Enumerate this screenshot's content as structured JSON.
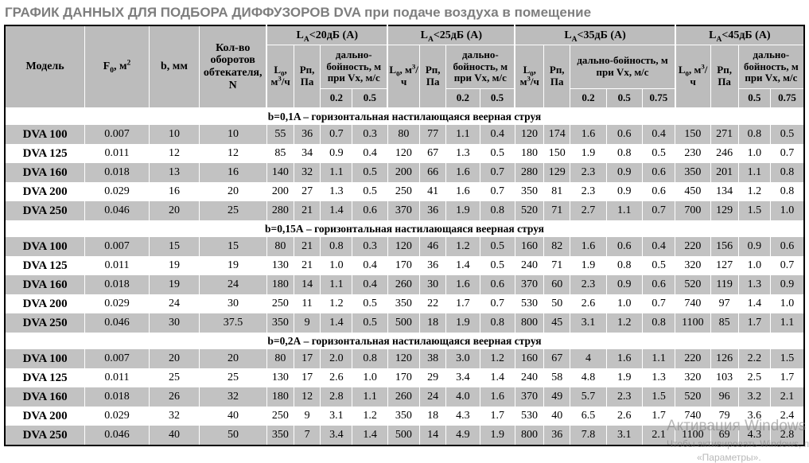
{
  "title": "ГРАФИК ДАННЫХ ДЛЯ ПОДБОРА ДИФФУЗОРОВ DVA при подаче воздуха в помещение",
  "colors": {
    "header_gray": "#bcbcbc",
    "row_gray": "#c2c2c2",
    "title_gray": "#7e7e7e",
    "border_black": "#000000"
  },
  "table": {
    "headers": {
      "model": "Модель",
      "f0": "F_{0}, м^{2}",
      "b": "b, мм",
      "n": "Кол-во оборотов обтекателя, N",
      "l0": "L_{0}, м^{3}/ч",
      "rp": "Рп, Па",
      "range": "дально-бойность, м при Vx, м/с"
    },
    "groups": [
      {
        "title": "L_{A}<20дБ (А)",
        "speeds": [
          "0.2",
          "0.5"
        ]
      },
      {
        "title": "L_{A}<25дБ (А)",
        "speeds": [
          "0.2",
          "0.5"
        ]
      },
      {
        "title": "L_{A}<35дБ (А)",
        "speeds": [
          "0.2",
          "0.5",
          "0.75"
        ]
      },
      {
        "title": "L_{A}<45дБ (А)",
        "speeds": [
          "0.5",
          "0.75"
        ]
      }
    ],
    "sections": [
      {
        "label": "b=0,1A  – горизонтальная настилающаяся веерная струя",
        "rows": [
          [
            "DVA 100",
            "0.007",
            "10",
            "10",
            "55",
            "36",
            "0.7",
            "0.3",
            "80",
            "77",
            "1.1",
            "0.4",
            "120",
            "174",
            "1.6",
            "0.6",
            "0.4",
            "150",
            "271",
            "0.8",
            "0.5"
          ],
          [
            "DVA 125",
            "0.011",
            "12",
            "12",
            "85",
            "34",
            "0.9",
            "0.4",
            "120",
            "67",
            "1.3",
            "0.5",
            "180",
            "150",
            "1.9",
            "0.8",
            "0.5",
            "230",
            "246",
            "1.0",
            "0.7"
          ],
          [
            "DVA 160",
            "0.018",
            "13",
            "16",
            "140",
            "32",
            "1.1",
            "0.5",
            "200",
            "66",
            "1.6",
            "0.7",
            "280",
            "129",
            "2.3",
            "0.9",
            "0.6",
            "350",
            "201",
            "1.1",
            "0.8"
          ],
          [
            "DVA 200",
            "0.029",
            "16",
            "20",
            "200",
            "27",
            "1.3",
            "0.5",
            "250",
            "41",
            "1.6",
            "0.7",
            "350",
            "81",
            "2.3",
            "0.9",
            "0.6",
            "450",
            "134",
            "1.2",
            "0.8"
          ],
          [
            "DVA 250",
            "0.046",
            "20",
            "25",
            "280",
            "21",
            "1.4",
            "0.6",
            "370",
            "36",
            "1.9",
            "0.8",
            "520",
            "71",
            "2.7",
            "1.1",
            "0.7",
            "700",
            "129",
            "1.5",
            "1.0"
          ]
        ]
      },
      {
        "label": "b=0,15А  – горизонтальная настилающаяся веерная струя",
        "rows": [
          [
            "DVA 100",
            "0.007",
            "15",
            "15",
            "80",
            "21",
            "0.8",
            "0.3",
            "120",
            "46",
            "1.2",
            "0.5",
            "160",
            "82",
            "1.6",
            "0.6",
            "0.4",
            "220",
            "156",
            "0.9",
            "0.6"
          ],
          [
            "DVA 125",
            "0.011",
            "19",
            "19",
            "130",
            "21",
            "1.0",
            "0.4",
            "170",
            "36",
            "1.4",
            "0.5",
            "240",
            "71",
            "1.9",
            "0.8",
            "0.5",
            "320",
            "127",
            "1.0",
            "0.7"
          ],
          [
            "DVA 160",
            "0.018",
            "19",
            "24",
            "180",
            "14",
            "1.1",
            "0.4",
            "260",
            "30",
            "1.6",
            "0.6",
            "370",
            "60",
            "2.3",
            "0.9",
            "0.6",
            "520",
            "119",
            "1.3",
            "0.9"
          ],
          [
            "DVA 200",
            "0.029",
            "24",
            "30",
            "250",
            "11",
            "1.2",
            "0.5",
            "350",
            "22",
            "1.7",
            "0.7",
            "530",
            "50",
            "2.6",
            "1.0",
            "0.7",
            "740",
            "97",
            "1.4",
            "1.0"
          ],
          [
            "DVA 250",
            "0.046",
            "30",
            "37.5",
            "350",
            "9",
            "1.4",
            "0.5",
            "500",
            "18",
            "1.9",
            "0.8",
            "800",
            "45",
            "3.1",
            "1.2",
            "0.8",
            "1100",
            "85",
            "1.7",
            "1.1"
          ]
        ]
      },
      {
        "label": "b=0,2А  – горизонтальная настилающаяся веерная струя",
        "rows": [
          [
            "DVA 100",
            "0.007",
            "20",
            "20",
            "80",
            "17",
            "2.0",
            "0.8",
            "120",
            "38",
            "3.0",
            "1.2",
            "160",
            "67",
            "4",
            "1.6",
            "1.1",
            "220",
            "126",
            "2.2",
            "1.5"
          ],
          [
            "DVA 125",
            "0.011",
            "25",
            "25",
            "130",
            "17",
            "2.6",
            "1.0",
            "170",
            "29",
            "3.4",
            "1.4",
            "240",
            "58",
            "4.8",
            "1.9",
            "1.3",
            "320",
            "103",
            "2.5",
            "1.7"
          ],
          [
            "DVA 160",
            "0.018",
            "26",
            "32",
            "180",
            "12",
            "2.8",
            "1.1",
            "260",
            "24",
            "4.0",
            "1.6",
            "370",
            "49",
            "5.7",
            "2.3",
            "1.5",
            "520",
            "96",
            "3.2",
            "2.1"
          ],
          [
            "DVA 200",
            "0.029",
            "32",
            "40",
            "250",
            "9",
            "3.1",
            "1.2",
            "350",
            "18",
            "4.3",
            "1.7",
            "530",
            "40",
            "6.5",
            "2.6",
            "1.7",
            "740",
            "79",
            "3.6",
            "2.4"
          ],
          [
            "DVA 250",
            "0.046",
            "40",
            "50",
            "350",
            "7",
            "3.4",
            "1.4",
            "500",
            "14",
            "4.9",
            "1.9",
            "800",
            "36",
            "7.8",
            "3.1",
            "2.1",
            "1100",
            "69",
            "4.3",
            "2.8"
          ]
        ]
      }
    ]
  },
  "watermark": {
    "line1": "Активация Windows",
    "line2": "Чтобы активировать Windows, перейдите в раздел",
    "line3": "«Параметры»."
  }
}
